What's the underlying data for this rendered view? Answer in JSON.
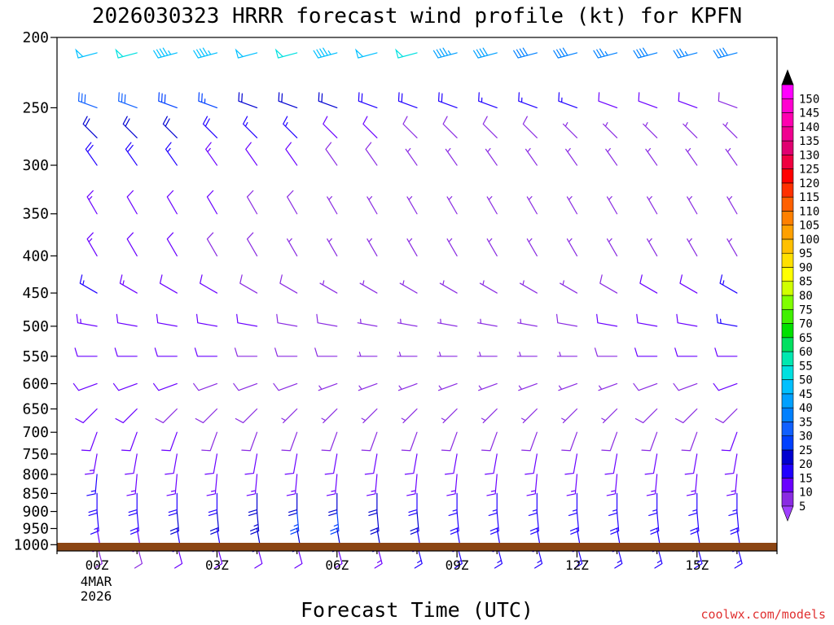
{
  "chart_data": {
    "type": "wind-barb-profile",
    "title": "2026030323 HRRR forecast wind profile (kt) for KPFN",
    "xlabel": "Forecast Time (UTC)",
    "ylabel": "",
    "credit": "coolwx.com/models",
    "y_axis": {
      "scale": "log-pressure",
      "range": [
        1020,
        200
      ],
      "tick_labels": [
        "200",
        "250",
        "300",
        "350",
        "400",
        "450",
        "500",
        "550",
        "600",
        "650",
        "700",
        "750",
        "800",
        "850",
        "900",
        "950",
        "1000"
      ],
      "tick_values": [
        200,
        250,
        300,
        350,
        400,
        450,
        500,
        550,
        600,
        650,
        700,
        750,
        800,
        850,
        900,
        950,
        1000
      ]
    },
    "x_axis": {
      "range_hours": [
        -1,
        17
      ],
      "tick_hours": [
        0,
        3,
        6,
        9,
        12,
        15
      ],
      "tick_labels": [
        "00Z",
        "03Z",
        "06Z",
        "09Z",
        "12Z",
        "15Z"
      ],
      "date_label_line1": "4MAR",
      "date_label_line2": "2026"
    },
    "colorbar": {
      "labels": [
        "5",
        "10",
        "15",
        "20",
        "25",
        "30",
        "35",
        "40",
        "45",
        "50",
        "55",
        "60",
        "65",
        "70",
        "75",
        "80",
        "85",
        "90",
        "95",
        "100",
        "105",
        "110",
        "115",
        "120",
        "125",
        "130",
        "135",
        "140",
        "145",
        "150"
      ],
      "colors": [
        "#8a2be2",
        "#6a00ff",
        "#2000ff",
        "#0000d0",
        "#0040ff",
        "#1060ff",
        "#0080ff",
        "#00a0ff",
        "#00c0ff",
        "#00e0e0",
        "#00e8b0",
        "#00e060",
        "#00e000",
        "#40f000",
        "#80ff00",
        "#d0ff00",
        "#ffff00",
        "#ffe000",
        "#ffc000",
        "#ffa000",
        "#ff8000",
        "#ff6000",
        "#ff3000",
        "#ff0000",
        "#f00040",
        "#e00070",
        "#f00090",
        "#ff00b0",
        "#ff00d0",
        "#ff00ff"
      ],
      "over_color": "#000000",
      "under_color": "#a040ff"
    },
    "ground_color": "#8b4513",
    "axis_color": "#000000",
    "columns_hours": [
      0,
      1,
      2,
      3,
      4,
      5,
      6,
      7,
      8,
      9,
      10,
      11,
      12,
      13,
      14,
      15,
      16
    ],
    "levels": [
      {
        "p": 210,
        "dir": 255,
        "spd": [
          48,
          50,
          46,
          46,
          48,
          50,
          46,
          48,
          50,
          44,
          40,
          38,
          38,
          35,
          38,
          35,
          38
        ]
      },
      {
        "p": 250,
        "dir": 290,
        "spd": [
          32,
          30,
          28,
          25,
          22,
          20,
          20,
          18,
          18,
          18,
          16,
          16,
          15,
          12,
          10,
          10,
          8
        ]
      },
      {
        "p": 275,
        "dir": 315,
        "spd": [
          22,
          22,
          20,
          18,
          16,
          15,
          12,
          10,
          8,
          8,
          8,
          8,
          7,
          6,
          6,
          5,
          6
        ]
      },
      {
        "p": 300,
        "dir": 325,
        "spd": [
          18,
          18,
          16,
          14,
          12,
          10,
          8,
          8,
          7,
          6,
          6,
          6,
          6,
          6,
          6,
          5,
          5
        ]
      },
      {
        "p": 350,
        "dir": 330,
        "spd": [
          14,
          12,
          10,
          10,
          8,
          8,
          7,
          6,
          6,
          6,
          6,
          6,
          5,
          5,
          5,
          5,
          5
        ]
      },
      {
        "p": 400,
        "dir": 330,
        "spd": [
          14,
          12,
          10,
          8,
          8,
          7,
          6,
          6,
          6,
          6,
          5,
          5,
          5,
          5,
          5,
          5,
          5
        ]
      },
      {
        "p": 450,
        "dir": 300,
        "spd": [
          16,
          14,
          12,
          10,
          8,
          8,
          7,
          6,
          6,
          5,
          5,
          6,
          6,
          8,
          10,
          12,
          15
        ]
      },
      {
        "p": 500,
        "dir": 280,
        "spd": [
          14,
          12,
          12,
          10,
          10,
          8,
          8,
          7,
          7,
          6,
          6,
          7,
          8,
          10,
          12,
          12,
          15
        ]
      },
      {
        "p": 550,
        "dir": 270,
        "spd": [
          12,
          12,
          10,
          10,
          8,
          8,
          8,
          7,
          7,
          6,
          6,
          7,
          7,
          8,
          10,
          10,
          12
        ]
      },
      {
        "p": 600,
        "dir": 250,
        "spd": [
          10,
          10,
          10,
          8,
          8,
          8,
          7,
          6,
          6,
          6,
          6,
          6,
          6,
          7,
          8,
          8,
          10
        ]
      },
      {
        "p": 650,
        "dir": 225,
        "spd": [
          10,
          10,
          8,
          8,
          8,
          7,
          6,
          6,
          5,
          5,
          5,
          5,
          6,
          6,
          8,
          8,
          8
        ]
      },
      {
        "p": 700,
        "dir": 200,
        "spd": [
          12,
          10,
          10,
          8,
          8,
          8,
          8,
          8,
          8,
          8,
          8,
          8,
          8,
          8,
          8,
          8,
          10
        ]
      },
      {
        "p": 750,
        "dir": 190,
        "spd": [
          14,
          12,
          12,
          10,
          10,
          10,
          10,
          10,
          10,
          10,
          10,
          10,
          10,
          10,
          10,
          10,
          10
        ]
      },
      {
        "p": 800,
        "dir": 185,
        "spd": [
          16,
          14,
          14,
          14,
          14,
          14,
          14,
          14,
          14,
          14,
          14,
          14,
          14,
          14,
          14,
          14,
          14
        ]
      },
      {
        "p": 850,
        "dir": 180,
        "spd": [
          18,
          18,
          18,
          18,
          20,
          20,
          20,
          20,
          18,
          16,
          16,
          16,
          16,
          16,
          16,
          16,
          16
        ]
      },
      {
        "p": 900,
        "dir": 175,
        "spd": [
          16,
          18,
          20,
          22,
          24,
          25,
          25,
          22,
          20,
          18,
          18,
          18,
          18,
          18,
          18,
          18,
          18
        ]
      },
      {
        "p": 950,
        "dir": 170,
        "spd": [
          12,
          14,
          16,
          18,
          20,
          22,
          22,
          20,
          18,
          16,
          16,
          16,
          16,
          16,
          16,
          16,
          16
        ]
      },
      {
        "p": 1000,
        "dir": 165,
        "spd": [
          8,
          8,
          10,
          10,
          12,
          12,
          12,
          14,
          16,
          16,
          16,
          16,
          16,
          16,
          16,
          16,
          16
        ]
      }
    ]
  }
}
